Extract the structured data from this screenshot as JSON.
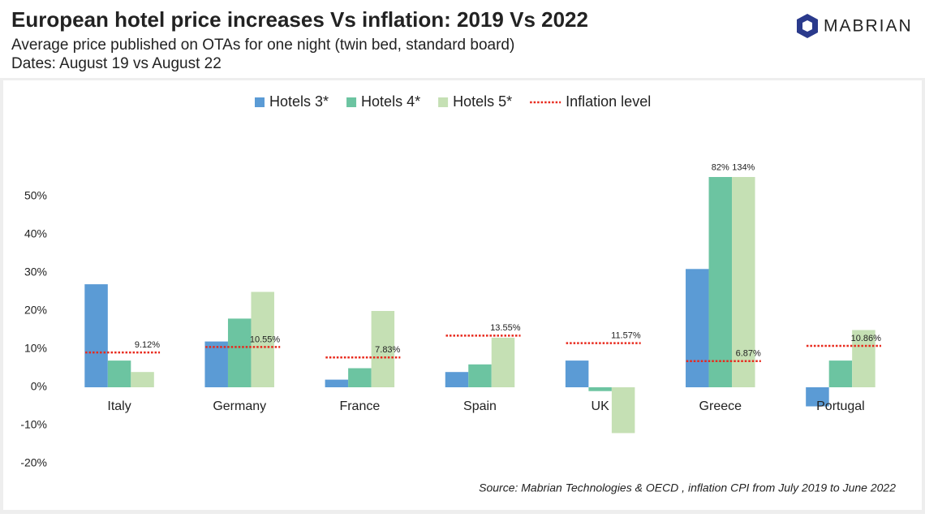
{
  "header": {
    "title": "European hotel price increases Vs inflation: 2019 Vs 2022",
    "subtitle": "Average price published on OTAs for one night (twin bed, standard board)",
    "dates": "Dates: August 19 vs August 22",
    "logo": "MABRIAN"
  },
  "chart_data": {
    "type": "bar",
    "categories": [
      "Italy",
      "Germany",
      "France",
      "Spain",
      "UK",
      "Greece",
      "Portugal"
    ],
    "series": [
      {
        "name": "Hotels 3*",
        "color": "#5b9bd5",
        "values": [
          27,
          12,
          2,
          4,
          7,
          31,
          -5
        ]
      },
      {
        "name": "Hotels 4*",
        "color": "#6cc4a1",
        "values": [
          7,
          18,
          5,
          6,
          -1,
          82,
          7
        ],
        "value_labels": [
          null,
          null,
          null,
          null,
          null,
          "82%",
          null
        ]
      },
      {
        "name": "Hotels 5*",
        "color": "#c5e0b4",
        "values": [
          4,
          25,
          20,
          13,
          -12,
          134,
          15
        ],
        "value_labels": [
          null,
          null,
          null,
          null,
          null,
          "134%",
          null
        ]
      },
      {
        "name": "Inflation level",
        "type": "line",
        "color": "#e8291c",
        "values": [
          9.12,
          10.55,
          7.83,
          13.55,
          11.57,
          6.87,
          10.86
        ],
        "value_labels": [
          "9.12%",
          "10.55%",
          "7.83%",
          "13.55%",
          "11.57%",
          "6.87%",
          "10.86%"
        ]
      }
    ],
    "ylim": [
      -22,
      55
    ],
    "yticks": [
      {
        "value": -20,
        "label": "-20%"
      },
      {
        "value": -10,
        "label": "-10%"
      },
      {
        "value": 0,
        "label": "0%"
      },
      {
        "value": 10,
        "label": "10%"
      },
      {
        "value": 20,
        "label": "20%"
      },
      {
        "value": 30,
        "label": "30%"
      },
      {
        "value": 40,
        "label": "40%"
      },
      {
        "value": 50,
        "label": "50%"
      }
    ],
    "legend": "top",
    "source": "Source: Mabrian Technologies & OECD , inflation CPI from July 2019 to June 2022"
  }
}
